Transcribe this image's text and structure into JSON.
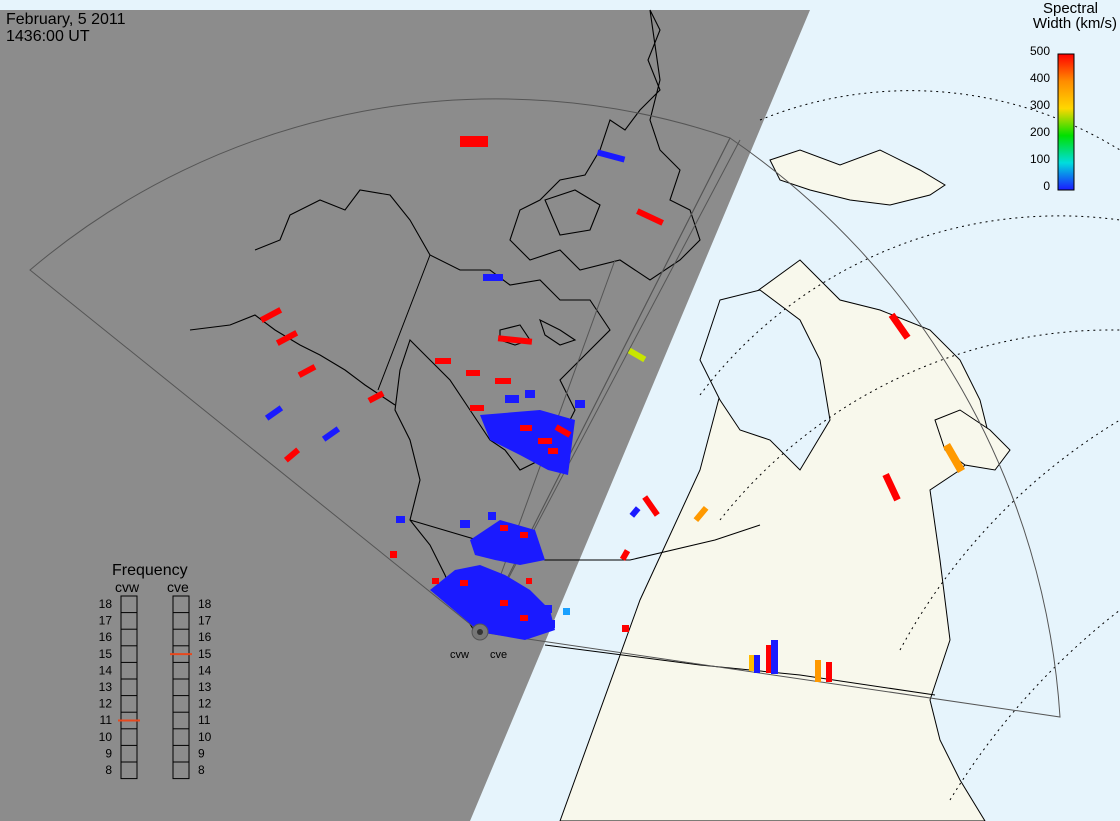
{
  "header": {
    "date": "February, 5 2011",
    "time": "1436:00 UT"
  },
  "colorbar": {
    "title_line1": "Spectral",
    "title_line2": "Width (km/s)",
    "ticks": [
      "500",
      "400",
      "300",
      "200",
      "100",
      "0"
    ],
    "stops": [
      "#ff0000",
      "#ff8c00",
      "#ffd700",
      "#00e000",
      "#00dddd",
      "#1a1aff"
    ]
  },
  "frequency_panel": {
    "title": "Frequency",
    "radars": [
      {
        "name": "cvw",
        "selected": "11"
      },
      {
        "name": "cve",
        "selected": "15"
      }
    ],
    "scale": [
      "18",
      "17",
      "16",
      "15",
      "14",
      "13",
      "12",
      "11",
      "10",
      "9",
      "8"
    ],
    "marker_color": "#e8481c"
  },
  "radar_sites": [
    "cvw",
    "cve"
  ],
  "colors": {
    "night": "#8c8c8c",
    "day_land": "#f8f8ec",
    "day_ocean": "#e6f4fc",
    "scatter_low": "#1a1aff",
    "scatter_high": "#ff0000"
  }
}
